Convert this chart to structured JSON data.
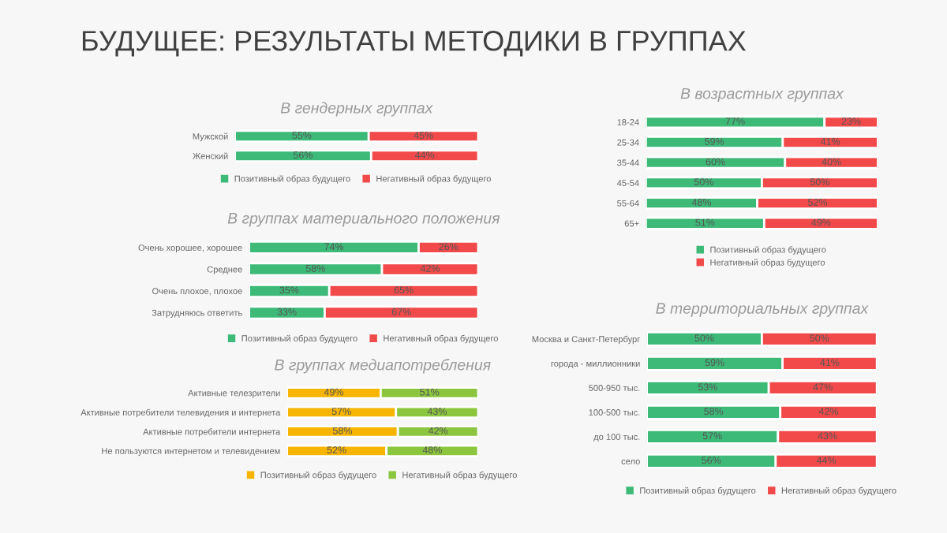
{
  "chart_data": [
    {
      "type": "bar",
      "orientation": "horizontal",
      "stacked": true,
      "title": "БУДУЩЕЕ: РЕЗУЛЬТАТЫ МЕТОДИКИ В ГРУППАХ",
      "subtitle": "В гендерных группах",
      "categories": [
        "Мужской",
        "Женский"
      ],
      "legend": "bottom",
      "tick_labels": "y",
      "grid": false,
      "series": [
        {
          "name": "Позитивный образ будущего",
          "color": "#3dba78",
          "values": [
            55,
            56
          ],
          "value_labels": [
            "55%",
            "56%"
          ]
        },
        {
          "name": "Негативный образ будущего",
          "color": "#f24a4a",
          "values": [
            45,
            44
          ],
          "value_labels": [
            "45%",
            "44%"
          ]
        }
      ]
    },
    {
      "type": "bar",
      "orientation": "horizontal",
      "stacked": true,
      "subtitle": "В группах материального положения",
      "categories": [
        "Очень хорошее, хорошее",
        "Среднее",
        "Очень плохое, плохое",
        "Затрудняюсь ответить"
      ],
      "legend": "bottom",
      "tick_labels": "y",
      "grid": false,
      "series": [
        {
          "name": "Позитивный образ будущего",
          "color": "#3dba78",
          "values": [
            74,
            58,
            35,
            33
          ],
          "value_labels": [
            "74%",
            "58%",
            "35%",
            "33%"
          ]
        },
        {
          "name": "Негативный образ будущего",
          "color": "#f24a4a",
          "values": [
            26,
            42,
            65,
            67
          ],
          "value_labels": [
            "26%",
            "42%",
            "65%",
            "67%"
          ]
        }
      ]
    },
    {
      "type": "bar",
      "orientation": "horizontal",
      "stacked": true,
      "subtitle": "В группах медиапотребления",
      "categories": [
        "Активные телезрители",
        "Активные потребители телевидения и интернета",
        "Активные потребители интернета",
        "Не пользуются интернетом и телевидением"
      ],
      "legend": "bottom",
      "tick_labels": "y",
      "grid": false,
      "series": [
        {
          "name": "Позитивный образ будущего",
          "color": "#f7b500",
          "values": [
            49,
            57,
            58,
            52
          ],
          "value_labels": [
            "49%",
            "57%",
            "58%",
            "52%"
          ]
        },
        {
          "name": "Негативный образ будущего",
          "color": "#8cc63e",
          "values": [
            51,
            43,
            42,
            48
          ],
          "value_labels": [
            "51%",
            "43%",
            "42%",
            "48%"
          ]
        }
      ]
    },
    {
      "type": "bar",
      "orientation": "horizontal",
      "stacked": true,
      "subtitle": "В возрастных группах",
      "categories": [
        "18-24",
        "25-34",
        "35-44",
        "45-54",
        "55-64",
        "65+"
      ],
      "legend": "bottom",
      "tick_labels": "y",
      "grid": false,
      "series": [
        {
          "name": "Позитивный образ будущего",
          "color": "#3dba78",
          "values": [
            77,
            59,
            60,
            50,
            48,
            51
          ],
          "value_labels": [
            "77%",
            "59%",
            "60%",
            "50%",
            "48%",
            "51%"
          ]
        },
        {
          "name": "Негативный образ будущего",
          "color": "#f24a4a",
          "values": [
            23,
            41,
            40,
            50,
            52,
            49
          ],
          "value_labels": [
            "23%",
            "41%",
            "40%",
            "50%",
            "52%",
            "49%"
          ]
        }
      ]
    },
    {
      "type": "bar",
      "orientation": "horizontal",
      "stacked": true,
      "subtitle": "В территориальных группах",
      "categories": [
        "Москва и Санкт-Петербург",
        "города - миллионники",
        "500-950 тыс.",
        "100-500 тыс.",
        "до 100 тыс.",
        "село"
      ],
      "legend": "bottom",
      "tick_labels": "y",
      "grid": false,
      "series": [
        {
          "name": "Позитивный образ будущего",
          "color": "#3dba78",
          "values": [
            50,
            59,
            53,
            58,
            57,
            56
          ],
          "value_labels": [
            "50%",
            "59%",
            "53%",
            "58%",
            "57%",
            "56%"
          ]
        },
        {
          "name": "Негативный образ будущего",
          "color": "#f24a4a",
          "values": [
            50,
            41,
            47,
            42,
            43,
            44
          ],
          "value_labels": [
            "50%",
            "41%",
            "47%",
            "42%",
            "43%",
            "44%"
          ]
        }
      ]
    }
  ]
}
